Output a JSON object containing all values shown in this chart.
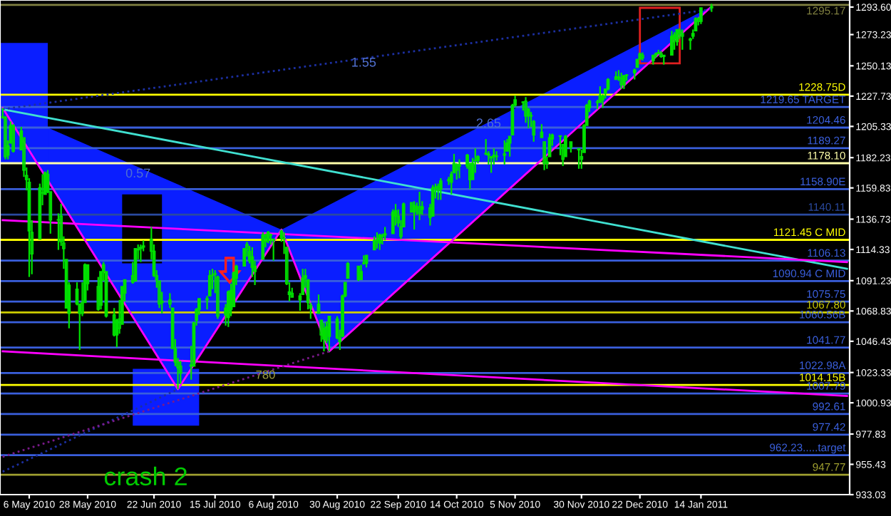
{
  "chart_data": {
    "type": "candlestick",
    "xlim": [
      "2010-04-25",
      "2011-03-11"
    ],
    "xticks": [
      {
        "value": "2010-05-06",
        "label": "6 May 2010"
      },
      {
        "value": "2010-05-28",
        "label": "28 May 2010"
      },
      {
        "value": "2010-06-22",
        "label": "22 Jun 2010"
      },
      {
        "value": "2010-07-15",
        "label": "15 Jul 2010"
      },
      {
        "value": "2010-08-06",
        "label": "6 Aug 2010"
      },
      {
        "value": "2010-08-30",
        "label": "30 Aug 2010"
      },
      {
        "value": "2010-09-22",
        "label": "22 Sep 2010"
      },
      {
        "value": "2010-10-14",
        "label": "14 Oct 2010"
      },
      {
        "value": "2010-11-05",
        "label": "5 Nov 2010"
      },
      {
        "value": "2010-11-30",
        "label": "30 Nov 2010"
      },
      {
        "value": "2010-12-22",
        "label": "22 Dec 2010"
      },
      {
        "value": "2011-01-14",
        "label": "14 Jan 2011"
      }
    ],
    "ylim": [
      933.03,
      1298.8
    ],
    "yticks": [
      933.03,
      955.43,
      977.83,
      1000.93,
      1023.33,
      1046.43,
      1068.83,
      1091.23,
      1114.33,
      1136.73,
      1159.83,
      1182.23,
      1205.33,
      1227.73,
      1250.13,
      1273.23,
      {
        "value": 1293.6,
        "label": "1293.60"
      }
    ],
    "grid": false,
    "legend": false,
    "series": [
      {
        "type": "candlestick",
        "color": "#00e000",
        "x": [
          "2010-04-26",
          "2010-04-27",
          "2010-04-28",
          "2010-04-29",
          "2010-04-30",
          "2010-05-03",
          "2010-05-04",
          "2010-05-05",
          "2010-05-06",
          "2010-05-07",
          "2010-05-10",
          "2010-05-11",
          "2010-05-12",
          "2010-05-13",
          "2010-05-14",
          "2010-05-17",
          "2010-05-18",
          "2010-05-19",
          "2010-05-20",
          "2010-05-21",
          "2010-05-24",
          "2010-05-25",
          "2010-05-26",
          "2010-05-27",
          "2010-05-28",
          "2010-06-01",
          "2010-06-02",
          "2010-06-03",
          "2010-06-04",
          "2010-06-07",
          "2010-06-08",
          "2010-06-09",
          "2010-06-10",
          "2010-06-11",
          "2010-06-14",
          "2010-06-15",
          "2010-06-16",
          "2010-06-17",
          "2010-06-18",
          "2010-06-21",
          "2010-06-22",
          "2010-06-23",
          "2010-06-24",
          "2010-06-25",
          "2010-06-28",
          "2010-06-29",
          "2010-06-30",
          "2010-07-01",
          "2010-07-02",
          "2010-07-06",
          "2010-07-07",
          "2010-07-08",
          "2010-07-09",
          "2010-07-12",
          "2010-07-13",
          "2010-07-14",
          "2010-07-15",
          "2010-07-16",
          "2010-07-19",
          "2010-07-20",
          "2010-07-21",
          "2010-07-22",
          "2010-07-23",
          "2010-07-26",
          "2010-07-27",
          "2010-07-28",
          "2010-07-29",
          "2010-07-30",
          "2010-08-02",
          "2010-08-03",
          "2010-08-04",
          "2010-08-05",
          "2010-08-06",
          "2010-08-09",
          "2010-08-10",
          "2010-08-11",
          "2010-08-12",
          "2010-08-13",
          "2010-08-16",
          "2010-08-17",
          "2010-08-18",
          "2010-08-19",
          "2010-08-20",
          "2010-08-23",
          "2010-08-24",
          "2010-08-25",
          "2010-08-26",
          "2010-08-27",
          "2010-08-30",
          "2010-08-31",
          "2010-09-01",
          "2010-09-02",
          "2010-09-03",
          "2010-09-07",
          "2010-09-08",
          "2010-09-09",
          "2010-09-10",
          "2010-09-13",
          "2010-09-14",
          "2010-09-15",
          "2010-09-16",
          "2010-09-17",
          "2010-09-20",
          "2010-09-21",
          "2010-09-22",
          "2010-09-23",
          "2010-09-24",
          "2010-09-27",
          "2010-09-28",
          "2010-09-29",
          "2010-09-30",
          "2010-10-01",
          "2010-10-04",
          "2010-10-05",
          "2010-10-06",
          "2010-10-07",
          "2010-10-08",
          "2010-10-11",
          "2010-10-12",
          "2010-10-13",
          "2010-10-14",
          "2010-10-15",
          "2010-10-18",
          "2010-10-19",
          "2010-10-20",
          "2010-10-21",
          "2010-10-22",
          "2010-10-25",
          "2010-10-26",
          "2010-10-27",
          "2010-10-28",
          "2010-10-29",
          "2010-11-01",
          "2010-11-02",
          "2010-11-03",
          "2010-11-04",
          "2010-11-05",
          "2010-11-08",
          "2010-11-09",
          "2010-11-10",
          "2010-11-11",
          "2010-11-12",
          "2010-11-15",
          "2010-11-16",
          "2010-11-17",
          "2010-11-18",
          "2010-11-19",
          "2010-11-22",
          "2010-11-23",
          "2010-11-24",
          "2010-11-26",
          "2010-11-29",
          "2010-11-30",
          "2010-12-01",
          "2010-12-02",
          "2010-12-03",
          "2010-12-06",
          "2010-12-07",
          "2010-12-08",
          "2010-12-09",
          "2010-12-10",
          "2010-12-13",
          "2010-12-14",
          "2010-12-15",
          "2010-12-16",
          "2010-12-17",
          "2010-12-20",
          "2010-12-21",
          "2010-12-22",
          "2010-12-23",
          "2010-12-27",
          "2010-12-28",
          "2010-12-29",
          "2010-12-30",
          "2010-12-31",
          "2011-01-03",
          "2011-01-04",
          "2011-01-05",
          "2011-01-06",
          "2011-01-07",
          "2011-01-10",
          "2011-01-11",
          "2011-01-12",
          "2011-01-13",
          "2011-01-14",
          "2011-01-18"
        ],
        "ohlc": [
          [
            1212,
            1219,
            1211,
            1212
          ],
          [
            1212,
            1213,
            1181,
            1183
          ],
          [
            1184,
            1195,
            1181,
            1191
          ],
          [
            1193,
            1209,
            1193,
            1206
          ],
          [
            1206,
            1207,
            1186,
            1187
          ],
          [
            1188,
            1205,
            1188,
            1202
          ],
          [
            1197,
            1197,
            1168,
            1173
          ],
          [
            1169,
            1175,
            1158,
            1166
          ],
          [
            1164,
            1167,
            1094,
            1128
          ],
          [
            1127,
            1136,
            1096,
            1111
          ],
          [
            1122,
            1163,
            1122,
            1160
          ],
          [
            1156,
            1170,
            1147,
            1156
          ],
          [
            1155,
            1172,
            1155,
            1171
          ],
          [
            1170,
            1173,
            1156,
            1157
          ],
          [
            1157,
            1157,
            1126,
            1136
          ],
          [
            1136,
            1141,
            1114,
            1136
          ],
          [
            1139,
            1148,
            1117,
            1120
          ],
          [
            1119,
            1124,
            1100,
            1115
          ],
          [
            1107,
            1107,
            1071,
            1071
          ],
          [
            1067,
            1090,
            1056,
            1088
          ],
          [
            1085,
            1090,
            1073,
            1074
          ],
          [
            1067,
            1074,
            1040,
            1074
          ],
          [
            1075,
            1090,
            1065,
            1067
          ],
          [
            1075,
            1104,
            1075,
            1103
          ],
          [
            1103,
            1103,
            1084,
            1089
          ],
          [
            1087,
            1094,
            1069,
            1070
          ],
          [
            1073,
            1098,
            1070,
            1098
          ],
          [
            1098,
            1105,
            1091,
            1103
          ],
          [
            1098,
            1098,
            1064,
            1065
          ],
          [
            1066,
            1071,
            1050,
            1051
          ],
          [
            1051,
            1063,
            1042,
            1062
          ],
          [
            1063,
            1077,
            1052,
            1056
          ],
          [
            1059,
            1087,
            1059,
            1087
          ],
          [
            1082,
            1092,
            1076,
            1092
          ],
          [
            1095,
            1105,
            1089,
            1090
          ],
          [
            1091,
            1115,
            1091,
            1115
          ],
          [
            1114,
            1118,
            1107,
            1114
          ],
          [
            1115,
            1118,
            1105,
            1116
          ],
          [
            1116,
            1121,
            1113,
            1117
          ],
          [
            1122,
            1131,
            1107,
            1113
          ],
          [
            1113,
            1118,
            1094,
            1095
          ],
          [
            1095,
            1099,
            1086,
            1092
          ],
          [
            1091,
            1091,
            1071,
            1074
          ],
          [
            1075,
            1083,
            1067,
            1076
          ],
          [
            1077,
            1082,
            1071,
            1074
          ],
          [
            1071,
            1071,
            1041,
            1041
          ],
          [
            1041,
            1048,
            1028,
            1031
          ],
          [
            1031,
            1034,
            1011,
            1027
          ],
          [
            1028,
            1032,
            1015,
            1023
          ],
          [
            1029,
            1043,
            1018,
            1028
          ],
          [
            1028,
            1061,
            1028,
            1060
          ],
          [
            1062,
            1071,
            1058,
            1070
          ],
          [
            1070,
            1078,
            1066,
            1078
          ],
          [
            1077,
            1080,
            1070,
            1078
          ],
          [
            1080,
            1099,
            1080,
            1095
          ],
          [
            1095,
            1100,
            1085,
            1095
          ],
          [
            1096,
            1099,
            1082,
            1096
          ],
          [
            1094,
            1095,
            1063,
            1065
          ],
          [
            1066,
            1074,
            1058,
            1071
          ],
          [
            1064,
            1084,
            1057,
            1083
          ],
          [
            1084,
            1089,
            1065,
            1070
          ],
          [
            1072,
            1098,
            1072,
            1097
          ],
          [
            1093,
            1103,
            1088,
            1102
          ],
          [
            1102,
            1115,
            1102,
            1115
          ],
          [
            1118,
            1120,
            1109,
            1114
          ],
          [
            1113,
            1117,
            1104,
            1106
          ],
          [
            1109,
            1116,
            1094,
            1101
          ],
          [
            1098,
            1106,
            1088,
            1102
          ],
          [
            1107,
            1127,
            1107,
            1125
          ],
          [
            1125,
            1126,
            1116,
            1120
          ],
          [
            1121,
            1128,
            1119,
            1127
          ],
          [
            1125,
            1126,
            1118,
            1125
          ],
          [
            1122,
            1122,
            1106,
            1121
          ],
          [
            1123,
            1129,
            1120,
            1128
          ],
          [
            1122,
            1127,
            1111,
            1122
          ],
          [
            1116,
            1116,
            1088,
            1089
          ],
          [
            1081,
            1090,
            1076,
            1083
          ],
          [
            1082,
            1086,
            1079,
            1079
          ],
          [
            1077,
            1082,
            1069,
            1080
          ],
          [
            1081,
            1100,
            1081,
            1093
          ],
          [
            1093,
            1100,
            1086,
            1095
          ],
          [
            1092,
            1092,
            1070,
            1075
          ],
          [
            1073,
            1075,
            1063,
            1071
          ],
          [
            1074,
            1081,
            1067,
            1067
          ],
          [
            1062,
            1062,
            1046,
            1051
          ],
          [
            1048,
            1060,
            1039,
            1056
          ],
          [
            1057,
            1061,
            1045,
            1047
          ],
          [
            1050,
            1065,
            1039,
            1065
          ],
          [
            1063,
            1065,
            1048,
            1049
          ],
          [
            1046,
            1055,
            1040,
            1049
          ],
          [
            1050,
            1081,
            1050,
            1080
          ],
          [
            1080,
            1090,
            1079,
            1090
          ],
          [
            1093,
            1105,
            1093,
            1104
          ],
          [
            1102,
            1102,
            1091,
            1092
          ],
          [
            1092,
            1103,
            1092,
            1098
          ],
          [
            1104,
            1110,
            1103,
            1104
          ],
          [
            1104,
            1110,
            1101,
            1110
          ],
          [
            1114,
            1124,
            1114,
            1121
          ],
          [
            1121,
            1127,
            1115,
            1121
          ],
          [
            1119,
            1126,
            1114,
            1125
          ],
          [
            1124,
            1126,
            1118,
            1124
          ],
          [
            1126,
            1131,
            1121,
            1125
          ],
          [
            1126,
            1144,
            1126,
            1142
          ],
          [
            1143,
            1148,
            1132,
            1139
          ],
          [
            1139,
            1144,
            1131,
            1134
          ],
          [
            1131,
            1136,
            1122,
            1124
          ],
          [
            1131,
            1149,
            1131,
            1148
          ],
          [
            1149,
            1149,
            1142,
            1142
          ],
          [
            1142,
            1150,
            1129,
            1147
          ],
          [
            1146,
            1149,
            1140,
            1144
          ],
          [
            1146,
            1157,
            1136,
            1141
          ],
          [
            1144,
            1150,
            1140,
            1146
          ],
          [
            1145,
            1148,
            1132,
            1138
          ],
          [
            1139,
            1162,
            1139,
            1160
          ],
          [
            1160,
            1163,
            1152,
            1160
          ],
          [
            1161,
            1163,
            1151,
            1158
          ],
          [
            1159,
            1167,
            1151,
            1165
          ],
          [
            1166,
            1168,
            1162,
            1165
          ],
          [
            1164,
            1172,
            1155,
            1170
          ],
          [
            1171,
            1185,
            1171,
            1178
          ],
          [
            1177,
            1178,
            1166,
            1173
          ],
          [
            1177,
            1181,
            1167,
            1176
          ],
          [
            1176,
            1185,
            1174,
            1184
          ],
          [
            1178,
            1178,
            1159,
            1166
          ],
          [
            1166,
            1182,
            1166,
            1178
          ],
          [
            1180,
            1189,
            1171,
            1180
          ],
          [
            1180,
            1184,
            1178,
            1183
          ],
          [
            1185,
            1196,
            1184,
            1185
          ],
          [
            1184,
            1187,
            1177,
            1185
          ],
          [
            1183,
            1183,
            1171,
            1182
          ],
          [
            1184,
            1189,
            1177,
            1183
          ],
          [
            1183,
            1187,
            1180,
            1183
          ],
          [
            1185,
            1195,
            1177,
            1184
          ],
          [
            1187,
            1196,
            1187,
            1193
          ],
          [
            1193,
            1198,
            1183,
            1198
          ],
          [
            1199,
            1222,
            1199,
            1221
          ],
          [
            1221,
            1228,
            1220,
            1225
          ],
          [
            1223,
            1224,
            1217,
            1223
          ],
          [
            1224,
            1227,
            1208,
            1213
          ],
          [
            1213,
            1219,
            1204,
            1218
          ],
          [
            1213,
            1216,
            1205,
            1213
          ],
          [
            1209,
            1210,
            1194,
            1199
          ],
          [
            1201,
            1207,
            1197,
            1197
          ],
          [
            1194,
            1194,
            1173,
            1178
          ],
          [
            1178,
            1183,
            1174,
            1179
          ],
          [
            1183,
            1200,
            1183,
            1197
          ],
          [
            1196,
            1200,
            1191,
            1199
          ],
          [
            1198,
            1198,
            1184,
            1198
          ],
          [
            1192,
            1192,
            1176,
            1181
          ],
          [
            1183,
            1199,
            1183,
            1198
          ],
          [
            1194,
            1194,
            1186,
            1190
          ],
          [
            1189,
            1189,
            1174,
            1188
          ],
          [
            1183,
            1188,
            1174,
            1181
          ],
          [
            1186,
            1207,
            1186,
            1206
          ],
          [
            1206,
            1222,
            1206,
            1221
          ],
          [
            1219,
            1225,
            1216,
            1224
          ],
          [
            1223,
            1225,
            1218,
            1223
          ],
          [
            1228,
            1235,
            1223,
            1223
          ],
          [
            1225,
            1229,
            1219,
            1228
          ],
          [
            1230,
            1233,
            1226,
            1233
          ],
          [
            1233,
            1241,
            1232,
            1240
          ],
          [
            1242,
            1246,
            1240,
            1240
          ],
          [
            1241,
            1247,
            1239,
            1242
          ],
          [
            1241,
            1245,
            1233,
            1236
          ],
          [
            1236,
            1243,
            1233,
            1243
          ],
          [
            1243,
            1244,
            1239,
            1243
          ],
          [
            1245,
            1248,
            1240,
            1247
          ],
          [
            1249,
            1255,
            1249,
            1255
          ],
          [
            1255,
            1260,
            1255,
            1259
          ],
          [
            1258,
            1260,
            1254,
            1256
          ],
          [
            1254,
            1258,
            1251,
            1258
          ],
          [
            1259,
            1260,
            1256,
            1258
          ],
          [
            1259,
            1262,
            1259,
            1260
          ],
          [
            1259,
            1261,
            1256,
            1257
          ],
          [
            1257,
            1258,
            1251,
            1258
          ],
          [
            1258,
            1276,
            1258,
            1272
          ],
          [
            1273,
            1275,
            1262,
            1270
          ],
          [
            1268,
            1277,
            1265,
            1277
          ],
          [
            1276,
            1278,
            1270,
            1274
          ],
          [
            1274,
            1277,
            1262,
            1272
          ],
          [
            1270,
            1271,
            1262,
            1269
          ],
          [
            1272,
            1277,
            1270,
            1274
          ],
          [
            1276,
            1286,
            1276,
            1285
          ],
          [
            1285,
            1286,
            1280,
            1283
          ],
          [
            1283,
            1293,
            1281,
            1293
          ],
          [
            1293,
            1296,
            1290,
            1294
          ]
        ]
      },
      {
        "type": "line",
        "x": [
          "2010-04-26",
          "2010-07-01",
          "2010-08-09",
          "2010-08-27",
          "2011-01-18"
        ],
        "values": [
          1219,
          1011,
          1129,
          1039,
          1294
        ],
        "color": "#ff00ff",
        "line_style": "solid"
      },
      {
        "type": "line",
        "x": [
          "2010-04-26",
          "2011-03-10"
        ],
        "values": [
          1218,
          1100
        ],
        "color": "#40e0d0",
        "line_style": "solid"
      },
      {
        "type": "line",
        "x": [
          "2010-04-26",
          "2011-03-10"
        ],
        "values": [
          1136,
          1105
        ],
        "color": "#ff00ff",
        "line_style": "solid"
      },
      {
        "type": "line",
        "x": [
          "2010-04-26",
          "2011-03-10"
        ],
        "values": [
          1039,
          1006
        ],
        "color": "#ff00ff",
        "line_style": "solid"
      },
      {
        "type": "line",
        "x": [
          "2010-04-26",
          "2011-01-18"
        ],
        "values": [
          1218,
          1292
        ],
        "color": "#1c2fa0",
        "line_style": "dotted"
      },
      {
        "type": "line",
        "x": [
          "2010-04-26",
          "2010-07-01"
        ],
        "values": [
          950,
          1011
        ],
        "color": "#1c2fa0",
        "line_style": "dotted"
      },
      {
        "type": "line",
        "x": [
          "2010-04-26",
          "2010-08-27"
        ],
        "values": [
          961,
          1039
        ],
        "color": "#7a1a8a",
        "line_style": "dotted"
      }
    ],
    "ref_lines": [
      {
        "axis": "y",
        "value": 1295.17,
        "label": "1295.17",
        "color": "#808040"
      },
      {
        "axis": "y",
        "value": 1228.75,
        "label": "1228.75D",
        "color": "#ffff00"
      },
      {
        "axis": "y",
        "value": 1219.65,
        "label": "1219.65 TARGET",
        "color": "#3a5fdc"
      },
      {
        "axis": "y",
        "value": 1204.46,
        "label": "1204.46",
        "color": "#3a5fdc"
      },
      {
        "axis": "y",
        "value": 1189.27,
        "label": "1189.27",
        "color": "#3a5fdc"
      },
      {
        "axis": "y",
        "value": 1178.1,
        "label": "1178.10",
        "color": "#ffffaa"
      },
      {
        "axis": "y",
        "value": 1158.9,
        "label": "1158.90E",
        "color": "#3a5fdc"
      },
      {
        "axis": "y",
        "value": 1140.11,
        "label": "1140.11",
        "color": "#2a4aa0"
      },
      {
        "axis": "y",
        "value": 1121.45,
        "label": "1121.45 C MID",
        "color": "#ffff00"
      },
      {
        "axis": "y",
        "value": 1106.13,
        "label": "1106.13",
        "color": "#3a5fdc"
      },
      {
        "axis": "y",
        "value": 1090.94,
        "label": "1090.94 C MID",
        "color": "#3a5fdc"
      },
      {
        "axis": "y",
        "value": 1075.75,
        "label": "1075.75",
        "color": "#3a5fdc"
      },
      {
        "axis": "y",
        "value": 1067.8,
        "label": "1067.80",
        "color": "#cccc00"
      },
      {
        "axis": "y",
        "value": 1060.56,
        "label": "1060.56B",
        "color": "#3a5fdc"
      },
      {
        "axis": "y",
        "value": 1041.77,
        "label": "1041.77",
        "color": "#3a5fdc"
      },
      {
        "axis": "y",
        "value": 1022.98,
        "label": "1022.98A",
        "color": "#3a5fdc"
      },
      {
        "axis": "y",
        "value": 1014.15,
        "label": "1014.15B",
        "color": "#ffff00"
      },
      {
        "axis": "y",
        "value": 1007.79,
        "label": "1007.79",
        "color": "#3a5fdc"
      },
      {
        "axis": "y",
        "value": 992.61,
        "label": "992.61",
        "color": "#3a5fdc"
      },
      {
        "axis": "y",
        "value": 977.42,
        "label": "977.42",
        "color": "#3a5fdc"
      },
      {
        "axis": "y",
        "value": 962.23,
        "label": "962.23.....target",
        "color": "#3a5fdc"
      },
      {
        "axis": "y",
        "value": 947.77,
        "label": "947.77",
        "color": "#a0a030"
      }
    ],
    "annotations": [
      "1.55",
      "2.65",
      "0.57",
      "780",
      "crash 2"
    ]
  }
}
